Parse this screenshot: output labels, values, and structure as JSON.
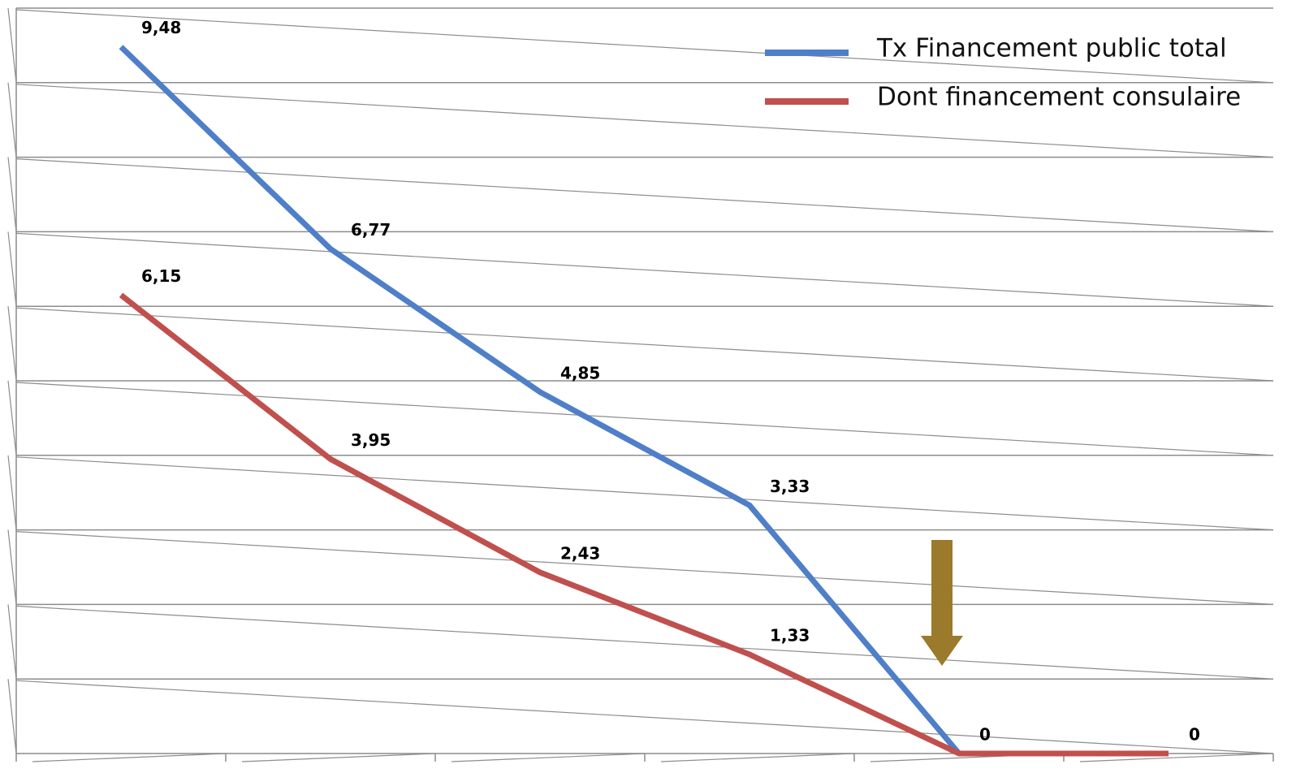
{
  "chart_data": {
    "type": "line",
    "categories": [
      null,
      null,
      null,
      null,
      null,
      null
    ],
    "series": [
      {
        "name": "Tx Financement public total",
        "color": "#4f7fc8",
        "values": [
          9.48,
          6.77,
          4.85,
          3.33,
          0,
          null
        ],
        "value_labels": [
          "9,48",
          "6,77",
          "4,85",
          "3,33",
          "0",
          null
        ]
      },
      {
        "name": "Dont financement consulaire",
        "color": "#c0504d",
        "values": [
          6.15,
          3.95,
          2.43,
          1.33,
          0,
          0
        ],
        "value_labels": [
          "6,15",
          "3,95",
          "2,43",
          "1,33",
          null,
          "0"
        ]
      }
    ],
    "ylim": [
      0,
      10
    ],
    "yticks": [
      0,
      1,
      2,
      3,
      4,
      5,
      6,
      7,
      8,
      9,
      10
    ],
    "grid": true,
    "legend": "top-right"
  }
}
